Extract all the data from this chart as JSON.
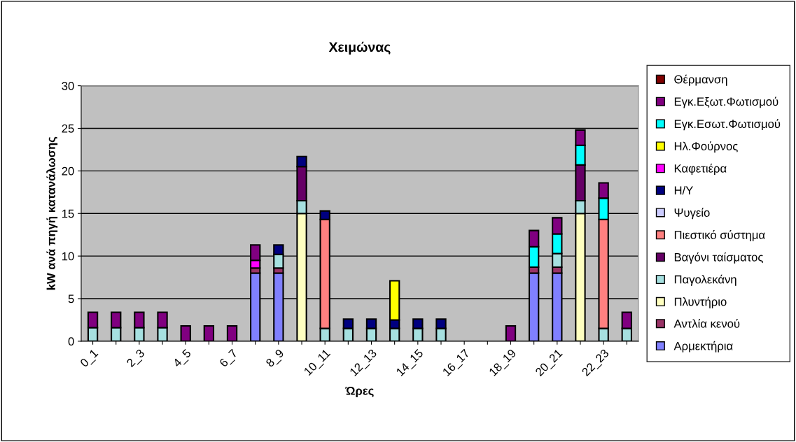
{
  "chart_data": {
    "type": "bar",
    "stacked": true,
    "title": "Χειμώνας",
    "xlabel": "Ώρες",
    "ylabel": "kW ανά πηγή κατανάλωσης",
    "categories": [
      "0_1",
      null,
      "2_3",
      null,
      "4_5",
      null,
      "6_7",
      null,
      "8_9",
      null,
      "10_11",
      null,
      "12_13",
      null,
      "14_15",
      null,
      "16_17",
      null,
      "18_19",
      null,
      "20_21",
      null,
      "22_23",
      null
    ],
    "ylim": [
      0,
      30
    ],
    "yticks": [
      0,
      5,
      10,
      15,
      20,
      25,
      30
    ],
    "grid": "y",
    "legend": "right",
    "series": [
      {
        "name": "Αρμεκτήρια",
        "color": "#8080ff",
        "values": [
          0,
          0,
          0,
          0,
          0,
          0,
          0,
          8.0,
          8.0,
          0,
          0,
          0,
          0,
          0,
          0,
          0,
          0,
          0,
          0,
          8.0,
          8.0,
          0,
          0,
          0
        ]
      },
      {
        "name": "Αντλία κενού",
        "color": "#993366",
        "values": [
          0,
          0,
          0,
          0,
          0,
          0,
          0,
          0.6,
          0.6,
          0,
          0,
          0,
          0,
          0,
          0,
          0,
          0,
          0,
          0,
          0.7,
          0.7,
          0,
          0,
          0
        ]
      },
      {
        "name": "Πλυντήριο",
        "color": "#ffffc0",
        "values": [
          0,
          0,
          0,
          0,
          0,
          0,
          0,
          0,
          0,
          15.0,
          0,
          0,
          0,
          0,
          0,
          0,
          0,
          0,
          0,
          0,
          0,
          15.0,
          0,
          0
        ]
      },
      {
        "name": "Παγολεκάνη",
        "color": "#a6e0e0",
        "values": [
          1.6,
          1.6,
          1.6,
          1.6,
          0,
          0,
          0,
          0,
          1.6,
          1.5,
          1.5,
          1.5,
          1.5,
          1.5,
          1.5,
          1.5,
          0,
          0,
          0,
          0,
          1.6,
          1.5,
          1.5,
          1.5
        ]
      },
      {
        "name": "Βαγόνι ταίσματος",
        "color": "#660066",
        "values": [
          0,
          0,
          0,
          0,
          0,
          0,
          0,
          0,
          0,
          4.0,
          0,
          0,
          0,
          0,
          0,
          0,
          0,
          0,
          0,
          0,
          0,
          4.2,
          0,
          0
        ]
      },
      {
        "name": "Πιεστικό σύστημα",
        "color": "#ff8080",
        "values": [
          0,
          0,
          0,
          0,
          0,
          0,
          0,
          0,
          0,
          0,
          12.8,
          0,
          0,
          0,
          0,
          0,
          0,
          0,
          0,
          0,
          0,
          0,
          12.8,
          0
        ]
      },
      {
        "name": "Ψυγείο",
        "color": "#ccccff",
        "values": [
          0,
          0,
          0,
          0,
          0,
          0,
          0,
          0,
          0,
          0,
          0,
          0,
          0,
          0,
          0,
          0,
          0,
          0,
          0,
          0,
          0,
          0,
          0,
          0
        ]
      },
      {
        "name": "Η/Υ",
        "color": "#000080",
        "values": [
          0,
          0,
          0,
          0,
          0,
          0,
          0,
          0,
          1.1,
          1.2,
          1.0,
          1.1,
          1.1,
          1.0,
          1.1,
          1.1,
          0,
          0,
          0,
          0,
          0,
          0,
          0,
          0
        ]
      },
      {
        "name": "Καφετιέρα",
        "color": "#ff00ff",
        "values": [
          0,
          0,
          0,
          0,
          0,
          0,
          0,
          0.9,
          0,
          0,
          0,
          0,
          0,
          0,
          0,
          0,
          0,
          0,
          0,
          0,
          0,
          0,
          0,
          0
        ]
      },
      {
        "name": "Ηλ.Φούρνος",
        "color": "#ffff00",
        "values": [
          0,
          0,
          0,
          0,
          0,
          0,
          0,
          0,
          0,
          0,
          0,
          0,
          0,
          4.6,
          0,
          0,
          0,
          0,
          0,
          0,
          0,
          0,
          0,
          0
        ]
      },
      {
        "name": "Εγκ.Εσωτ.Φωτισμού",
        "color": "#00ffff",
        "values": [
          0,
          0,
          0,
          0,
          0,
          0,
          0,
          0,
          0,
          0,
          0,
          0,
          0,
          0,
          0,
          0,
          0,
          0,
          0,
          2.4,
          2.3,
          2.3,
          2.5,
          0
        ]
      },
      {
        "name": "Εγκ.Εξωτ.Φωτισμού",
        "color": "#800080",
        "values": [
          1.8,
          1.8,
          1.8,
          1.8,
          1.8,
          1.8,
          1.8,
          1.8,
          0,
          0,
          0,
          0,
          0,
          0,
          0,
          0,
          0,
          0,
          1.8,
          1.9,
          1.9,
          1.8,
          1.8,
          1.9
        ]
      },
      {
        "name": "Θέρμανση",
        "color": "#800000",
        "values": [
          0,
          0,
          0,
          0,
          0,
          0,
          0,
          0,
          0,
          0,
          0,
          0,
          0,
          0,
          0,
          0,
          0,
          0,
          0,
          0,
          0,
          0,
          0,
          0
        ]
      }
    ]
  }
}
